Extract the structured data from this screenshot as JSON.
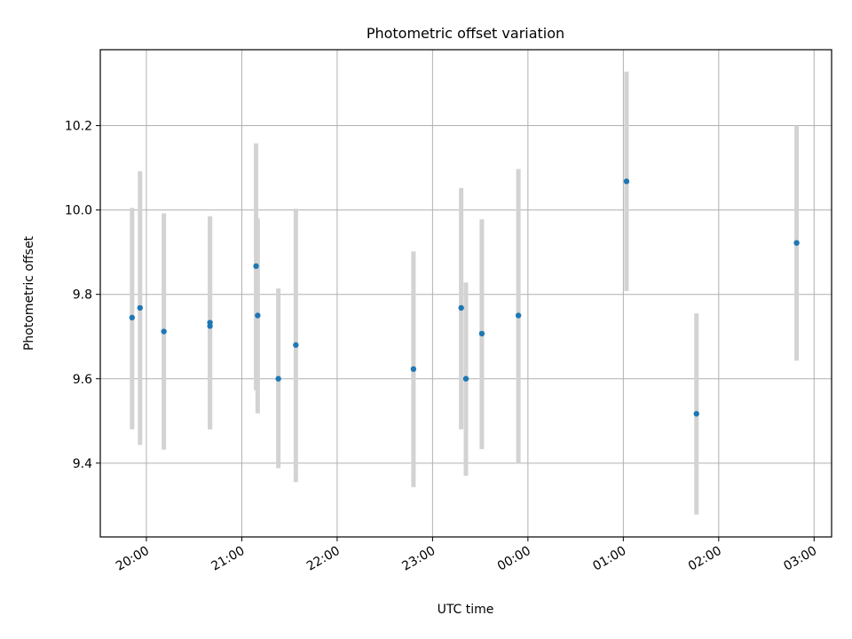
{
  "chart_data": {
    "type": "scatter",
    "title": "Photometric offset variation",
    "xlabel": "UTC time",
    "ylabel": "Photometric offset",
    "xlim": [
      "19:31",
      "03:11"
    ],
    "ylim": [
      9.225,
      10.38
    ],
    "x_axis_type": "time",
    "x_ticks": [
      "20:00",
      "21:00",
      "22:00",
      "23:00",
      "00:00",
      "01:00",
      "02:00",
      "03:00"
    ],
    "y_ticks": [
      9.4,
      9.6,
      9.8,
      10.0,
      10.2
    ],
    "y_tick_labels": [
      "9.4",
      "9.6",
      "9.8",
      "10.0",
      "10.2"
    ],
    "grid": true,
    "colors": {
      "point": "#1f77b4",
      "errorbar": "#d3d3d3"
    },
    "points": [
      {
        "t": "19:51",
        "y": 9.745,
        "ylo": 9.48,
        "yhi": 10.005
      },
      {
        "t": "19:56",
        "y": 9.768,
        "ylo": 9.443,
        "yhi": 10.092
      },
      {
        "t": "20:11",
        "y": 9.712,
        "ylo": 9.432,
        "yhi": 9.992
      },
      {
        "t": "20:40",
        "y": 9.725,
        "ylo": 9.48,
        "yhi": 9.985
      },
      {
        "t": "20:40",
        "y": 9.733,
        "ylo": 9.48,
        "yhi": 9.985
      },
      {
        "t": "21:09",
        "y": 9.867,
        "ylo": 9.573,
        "yhi": 10.158
      },
      {
        "t": "21:10",
        "y": 9.75,
        "ylo": 9.518,
        "yhi": 9.98
      },
      {
        "t": "21:23",
        "y": 9.6,
        "ylo": 9.388,
        "yhi": 9.814
      },
      {
        "t": "21:34",
        "y": 9.68,
        "ylo": 9.355,
        "yhi": 10.003
      },
      {
        "t": "22:48",
        "y": 9.623,
        "ylo": 9.343,
        "yhi": 9.902
      },
      {
        "t": "23:18",
        "y": 9.768,
        "ylo": 9.48,
        "yhi": 10.052
      },
      {
        "t": "23:21",
        "y": 9.6,
        "ylo": 9.37,
        "yhi": 9.828
      },
      {
        "t": "23:31",
        "y": 9.707,
        "ylo": 9.433,
        "yhi": 9.978
      },
      {
        "t": "23:54",
        "y": 9.75,
        "ylo": 9.4,
        "yhi": 10.097
      },
      {
        "t": "01:02",
        "y": 10.068,
        "ylo": 9.808,
        "yhi": 10.328
      },
      {
        "t": "01:46",
        "y": 9.517,
        "ylo": 9.278,
        "yhi": 9.755
      },
      {
        "t": "02:49",
        "y": 9.922,
        "ylo": 9.643,
        "yhi": 10.2
      }
    ]
  }
}
